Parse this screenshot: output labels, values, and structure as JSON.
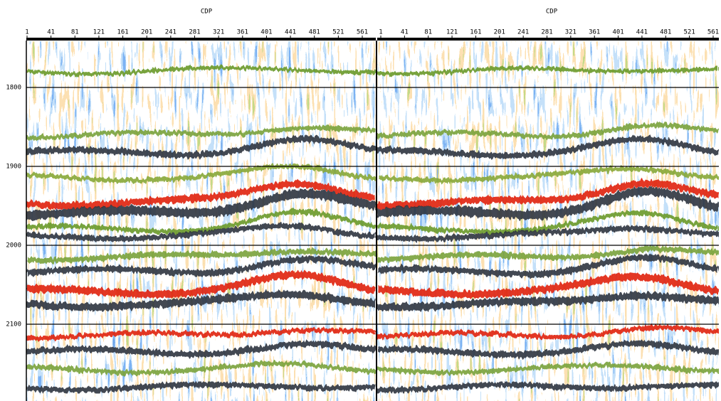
{
  "panels": [
    {
      "axis_label": "CDP",
      "x_ticks": [
        "1",
        "41",
        "81",
        "121",
        "161",
        "201",
        "241",
        "281",
        "321",
        "361",
        "401",
        "441",
        "481",
        "521",
        "561"
      ]
    },
    {
      "axis_label": "CDP",
      "x_ticks": [
        "1",
        "41",
        "81",
        "121",
        "161",
        "201",
        "241",
        "281",
        "321",
        "361",
        "401",
        "441",
        "481",
        "521",
        "561"
      ]
    }
  ],
  "y_ticks": [
    "1800",
    "1900",
    "2000",
    "2100"
  ]
}
